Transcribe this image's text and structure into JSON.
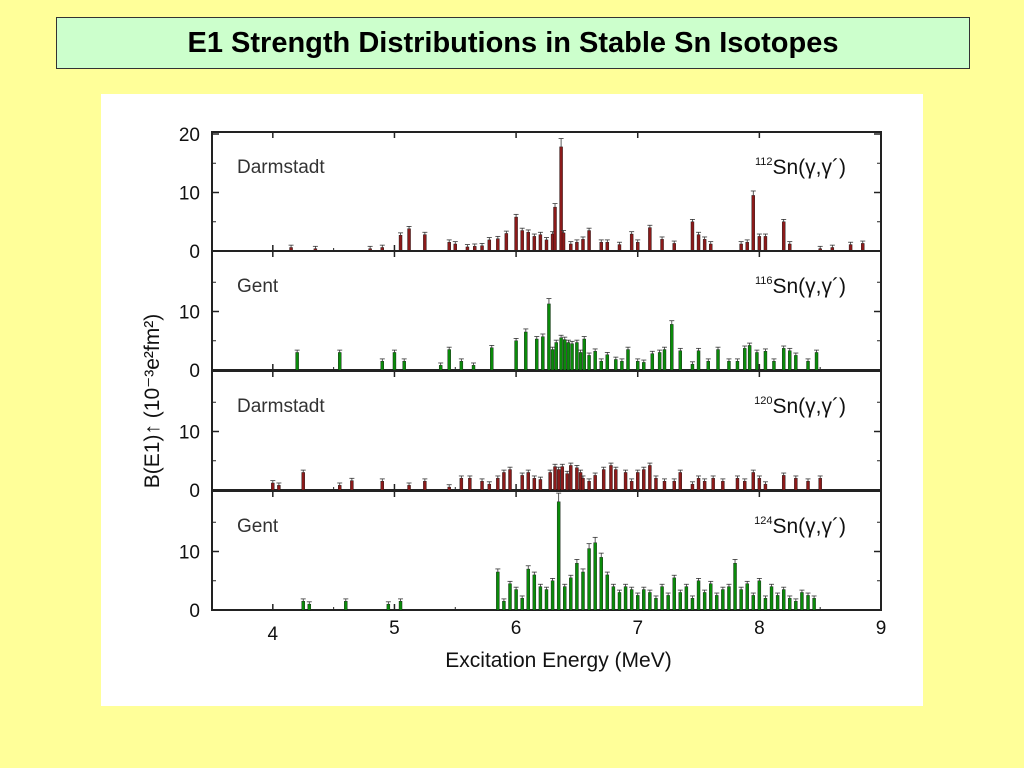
{
  "slide": {
    "title": "E1 Strength Distributions in Stable Sn Isotopes",
    "background": "#ffff99",
    "title_box_color": "#ccffcc"
  },
  "chart_data": {
    "type": "bar",
    "xlabel": "Excitation Energy (MeV)",
    "ylabel": "B(E1)↑ (10⁻³e²fm²)",
    "xlim": [
      3.5,
      9
    ],
    "x_ticks": [
      "4",
      "5",
      "6",
      "7",
      "8",
      "9"
    ],
    "grid": false,
    "error_bars": true,
    "panels": [
      {
        "lab": "Darmstadt",
        "mass": "112",
        "reaction": "Sn(γ,γ´)",
        "color": "#8b1a1a",
        "ylim": [
          0,
          20
        ],
        "y_ticks": [
          "20",
          "10",
          "0"
        ],
        "x": [
          4.15,
          4.35,
          4.8,
          4.9,
          5.05,
          5.12,
          5.25,
          5.45,
          5.5,
          5.6,
          5.66,
          5.72,
          5.78,
          5.85,
          5.92,
          6.0,
          6.05,
          6.1,
          6.15,
          6.2,
          6.25,
          6.3,
          6.32,
          6.37,
          6.39,
          6.45,
          6.5,
          6.55,
          6.6,
          6.7,
          6.75,
          6.85,
          6.95,
          7.0,
          7.1,
          7.2,
          7.3,
          7.45,
          7.5,
          7.55,
          7.6,
          7.85,
          7.9,
          7.95,
          8.0,
          8.05,
          8.2,
          8.25,
          8.5,
          8.6,
          8.75,
          8.85
        ],
        "values": [
          0.6,
          0.4,
          0.4,
          0.6,
          2.7,
          3.8,
          2.8,
          1.5,
          1.2,
          0.7,
          0.8,
          0.9,
          1.9,
          2.1,
          3.0,
          5.8,
          3.5,
          3.2,
          2.5,
          2.8,
          1.9,
          2.9,
          7.5,
          17.8,
          3.1,
          1.2,
          1.5,
          2.0,
          3.5,
          1.5,
          1.5,
          1.1,
          2.9,
          1.5,
          4.0,
          2.0,
          1.3,
          5.0,
          2.8,
          2.0,
          1.2,
          1.2,
          1.5,
          9.5,
          2.5,
          2.5,
          5.0,
          1.2,
          0.4,
          0.6,
          1.1,
          1.3
        ]
      },
      {
        "lab": "Gent",
        "mass": "116",
        "reaction": "Sn(γ,γ´)",
        "color": "#0a8a0a",
        "ylim": [
          0,
          20
        ],
        "y_ticks": [
          "10",
          "0"
        ],
        "x": [
          4.2,
          4.55,
          4.9,
          5.0,
          5.08,
          5.38,
          5.45,
          5.55,
          5.65,
          5.8,
          6.0,
          6.08,
          6.17,
          6.22,
          6.27,
          6.3,
          6.33,
          6.37,
          6.4,
          6.43,
          6.46,
          6.5,
          6.53,
          6.56,
          6.6,
          6.65,
          6.7,
          6.75,
          6.82,
          6.87,
          6.92,
          7.0,
          7.05,
          7.12,
          7.18,
          7.22,
          7.28,
          7.35,
          7.45,
          7.5,
          7.58,
          7.66,
          7.75,
          7.82,
          7.88,
          7.92,
          7.98,
          8.05,
          8.12,
          8.2,
          8.25,
          8.3,
          8.4,
          8.47
        ],
        "values": [
          3.0,
          3.0,
          1.5,
          3.0,
          1.5,
          0.8,
          3.5,
          1.5,
          0.8,
          3.8,
          5.0,
          6.5,
          5.3,
          5.7,
          11.3,
          3.5,
          4.7,
          5.5,
          5.2,
          4.7,
          4.5,
          4.7,
          3.0,
          5.3,
          2.5,
          3.2,
          1.5,
          2.6,
          1.8,
          1.5,
          3.5,
          1.5,
          1.3,
          2.8,
          3.0,
          3.5,
          7.8,
          3.3,
          1.0,
          3.3,
          1.5,
          3.5,
          1.5,
          1.5,
          3.7,
          4.2,
          3.0,
          3.2,
          1.5,
          3.7,
          3.3,
          2.5,
          1.5,
          3.0
        ]
      },
      {
        "lab": "Darmstadt",
        "mass": "120",
        "reaction": "Sn(γ,γ´)",
        "color": "#8b1a1a",
        "ylim": [
          0,
          20
        ],
        "y_ticks": [
          "10",
          "0"
        ],
        "x": [
          4.0,
          4.05,
          4.25,
          4.55,
          4.65,
          4.9,
          5.12,
          5.25,
          5.45,
          5.55,
          5.62,
          5.72,
          5.78,
          5.85,
          5.9,
          5.95,
          6.05,
          6.1,
          6.15,
          6.2,
          6.28,
          6.32,
          6.35,
          6.38,
          6.42,
          6.45,
          6.5,
          6.53,
          6.55,
          6.6,
          6.65,
          6.72,
          6.78,
          6.82,
          6.9,
          6.95,
          7.0,
          7.05,
          7.1,
          7.15,
          7.22,
          7.3,
          7.35,
          7.45,
          7.5,
          7.55,
          7.62,
          7.7,
          7.82,
          7.88,
          7.95,
          8.0,
          8.05,
          8.2,
          8.3,
          8.4,
          8.5
        ],
        "values": [
          1.2,
          0.8,
          3.0,
          0.8,
          1.6,
          1.5,
          0.8,
          1.5,
          0.5,
          2.0,
          2.0,
          1.5,
          1.0,
          2.0,
          3.0,
          3.5,
          2.5,
          3.0,
          2.0,
          1.8,
          3.0,
          4.0,
          3.5,
          4.0,
          2.8,
          4.2,
          3.8,
          3.0,
          2.0,
          1.5,
          2.5,
          3.5,
          4.2,
          3.5,
          3.0,
          1.5,
          3.0,
          3.5,
          4.2,
          2.0,
          1.5,
          1.5,
          3.0,
          1.0,
          2.0,
          1.5,
          2.0,
          1.5,
          2.0,
          1.5,
          3.0,
          2.0,
          1.0,
          2.5,
          2.0,
          1.5,
          2.0
        ]
      },
      {
        "lab": "Gent",
        "mass": "124",
        "reaction": "Sn(γ,γ´)",
        "color": "#0a8a0a",
        "ylim": [
          0,
          20
        ],
        "y_ticks": [
          "10",
          "0"
        ],
        "x": [
          4.25,
          4.3,
          4.6,
          4.95,
          5.05,
          5.85,
          5.9,
          5.95,
          6.0,
          6.05,
          6.1,
          6.15,
          6.2,
          6.25,
          6.3,
          6.35,
          6.4,
          6.45,
          6.5,
          6.55,
          6.6,
          6.65,
          6.7,
          6.75,
          6.8,
          6.85,
          6.9,
          6.95,
          7.0,
          7.05,
          7.1,
          7.15,
          7.2,
          7.25,
          7.3,
          7.35,
          7.4,
          7.45,
          7.5,
          7.55,
          7.6,
          7.65,
          7.7,
          7.75,
          7.8,
          7.85,
          7.9,
          7.95,
          8.0,
          8.05,
          8.1,
          8.15,
          8.2,
          8.25,
          8.3,
          8.35,
          8.4,
          8.45
        ],
        "values": [
          1.5,
          1.0,
          1.5,
          1.0,
          1.5,
          6.5,
          1.5,
          4.5,
          3.5,
          2.0,
          7.0,
          6.0,
          4.0,
          3.5,
          5.0,
          18.5,
          4.0,
          5.5,
          8.0,
          6.5,
          10.5,
          11.5,
          9.0,
          6.0,
          4.0,
          3.0,
          4.0,
          3.5,
          2.5,
          3.5,
          3.0,
          2.0,
          4.0,
          2.5,
          5.5,
          3.0,
          4.0,
          2.0,
          5.0,
          3.0,
          4.5,
          2.5,
          3.5,
          4.0,
          8.0,
          3.5,
          4.5,
          2.5,
          5.0,
          2.0,
          4.0,
          2.5,
          3.5,
          2.0,
          1.5,
          3.0,
          2.5,
          2.0
        ]
      }
    ]
  }
}
